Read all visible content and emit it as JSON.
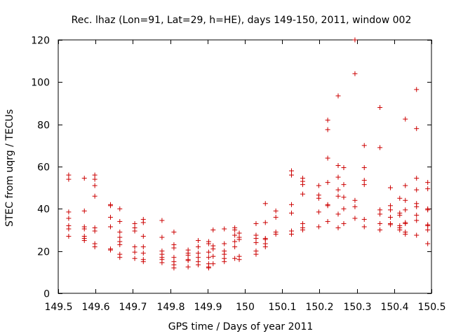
{
  "chart_data": {
    "type": "scatter",
    "title": "Rec. lhaz (Lon=91, Lat=29, h=HE), days 149-150, 2011, window 002",
    "xlabel": "GPS time / Days of year 2011",
    "ylabel": "STEC from uqrg / TECUs",
    "xlim": [
      149.5,
      150.5
    ],
    "ylim": [
      0,
      120
    ],
    "xticks": [
      149.5,
      149.6,
      149.7,
      149.8,
      149.9,
      150,
      150.1,
      150.2,
      150.3,
      150.4,
      150.5
    ],
    "xtick_labels": [
      "149.5",
      "149.6",
      "149.7",
      "149.8",
      "149.9",
      "150",
      "150.1",
      "150.2",
      "150.3",
      "150.4",
      "150.5"
    ],
    "yticks": [
      0,
      20,
      40,
      60,
      80,
      100,
      120
    ],
    "ytick_labels": [
      "0",
      "20",
      "40",
      "60",
      "80",
      "100",
      "120"
    ],
    "grid": false,
    "marker": "+",
    "color": "#cc0000",
    "points": [
      [
        149.528,
        56
      ],
      [
        149.528,
        54
      ],
      [
        149.528,
        38.5
      ],
      [
        149.528,
        35.5
      ],
      [
        149.528,
        32
      ],
      [
        149.528,
        30.5
      ],
      [
        149.528,
        27
      ],
      [
        149.57,
        54.5
      ],
      [
        149.57,
        39
      ],
      [
        149.57,
        31.5
      ],
      [
        149.57,
        30.5
      ],
      [
        149.57,
        27
      ],
      [
        149.57,
        26
      ],
      [
        149.57,
        25
      ],
      [
        149.598,
        56
      ],
      [
        149.598,
        54
      ],
      [
        149.598,
        51
      ],
      [
        149.598,
        46
      ],
      [
        149.598,
        31
      ],
      [
        149.598,
        29.5
      ],
      [
        149.598,
        23.5
      ],
      [
        149.598,
        22
      ],
      [
        149.64,
        42
      ],
      [
        149.64,
        41.5
      ],
      [
        149.64,
        36
      ],
      [
        149.64,
        31.5
      ],
      [
        149.64,
        21
      ],
      [
        149.64,
        20.5
      ],
      [
        149.665,
        40
      ],
      [
        149.665,
        34
      ],
      [
        149.665,
        29
      ],
      [
        149.665,
        26.5
      ],
      [
        149.665,
        24.5
      ],
      [
        149.665,
        23
      ],
      [
        149.665,
        18.5
      ],
      [
        149.665,
        17
      ],
      [
        149.705,
        33
      ],
      [
        149.705,
        31
      ],
      [
        149.705,
        29.5
      ],
      [
        149.705,
        22
      ],
      [
        149.705,
        19.5
      ],
      [
        149.705,
        16.5
      ],
      [
        149.728,
        35
      ],
      [
        149.728,
        33.5
      ],
      [
        149.728,
        27
      ],
      [
        149.728,
        22
      ],
      [
        149.728,
        19
      ],
      [
        149.728,
        16
      ],
      [
        149.728,
        15
      ],
      [
        149.778,
        34.5
      ],
      [
        149.778,
        26.5
      ],
      [
        149.778,
        20
      ],
      [
        149.778,
        18.5
      ],
      [
        149.778,
        17
      ],
      [
        149.778,
        16
      ],
      [
        149.778,
        14.5
      ],
      [
        149.81,
        29
      ],
      [
        149.81,
        23
      ],
      [
        149.81,
        21.5
      ],
      [
        149.81,
        17
      ],
      [
        149.81,
        15
      ],
      [
        149.81,
        13.5
      ],
      [
        149.81,
        12
      ],
      [
        149.848,
        20.5
      ],
      [
        149.848,
        19
      ],
      [
        149.848,
        18
      ],
      [
        149.848,
        16
      ],
      [
        149.848,
        15.5
      ],
      [
        149.848,
        12.5
      ],
      [
        149.875,
        25
      ],
      [
        149.875,
        22
      ],
      [
        149.875,
        19
      ],
      [
        149.875,
        17
      ],
      [
        149.875,
        15
      ],
      [
        149.875,
        13.5
      ],
      [
        149.903,
        24.5
      ],
      [
        149.903,
        23.5
      ],
      [
        149.903,
        19.5
      ],
      [
        149.903,
        17
      ],
      [
        149.903,
        14
      ],
      [
        149.903,
        12.5
      ],
      [
        149.903,
        12
      ],
      [
        149.915,
        30
      ],
      [
        149.915,
        22.5
      ],
      [
        149.915,
        21
      ],
      [
        149.915,
        17.5
      ],
      [
        149.915,
        14
      ],
      [
        149.945,
        30.5
      ],
      [
        149.945,
        23.5
      ],
      [
        149.945,
        20
      ],
      [
        149.945,
        18.5
      ],
      [
        149.945,
        16.5
      ],
      [
        149.945,
        15
      ],
      [
        149.973,
        31
      ],
      [
        149.973,
        30
      ],
      [
        149.973,
        27.5
      ],
      [
        149.973,
        24.5
      ],
      [
        149.973,
        22
      ],
      [
        149.973,
        16.5
      ],
      [
        149.985,
        28.5
      ],
      [
        149.985,
        26.5
      ],
      [
        149.985,
        25.5
      ],
      [
        149.985,
        17.5
      ],
      [
        149.985,
        16
      ],
      [
        150.03,
        33
      ],
      [
        150.03,
        27.5
      ],
      [
        150.03,
        26
      ],
      [
        150.03,
        24
      ],
      [
        150.03,
        20
      ],
      [
        150.03,
        18.5
      ],
      [
        150.055,
        42.5
      ],
      [
        150.055,
        33.5
      ],
      [
        150.055,
        26
      ],
      [
        150.055,
        25.5
      ],
      [
        150.055,
        23.5
      ],
      [
        150.055,
        22
      ],
      [
        150.083,
        39
      ],
      [
        150.083,
        36
      ],
      [
        150.083,
        29
      ],
      [
        150.083,
        28
      ],
      [
        150.125,
        58
      ],
      [
        150.125,
        56
      ],
      [
        150.125,
        42
      ],
      [
        150.125,
        38
      ],
      [
        150.125,
        29.5
      ],
      [
        150.125,
        28
      ],
      [
        150.155,
        54.5
      ],
      [
        150.155,
        53
      ],
      [
        150.155,
        51.5
      ],
      [
        150.155,
        47
      ],
      [
        150.155,
        33
      ],
      [
        150.155,
        31
      ],
      [
        150.155,
        30
      ],
      [
        150.198,
        51
      ],
      [
        150.198,
        46.5
      ],
      [
        150.198,
        45
      ],
      [
        150.198,
        38.5
      ],
      [
        150.198,
        31.5
      ],
      [
        150.222,
        82
      ],
      [
        150.222,
        77.5
      ],
      [
        150.222,
        64
      ],
      [
        150.222,
        52.5
      ],
      [
        150.222,
        42
      ],
      [
        150.222,
        41.5
      ],
      [
        150.222,
        34
      ],
      [
        150.25,
        93.5
      ],
      [
        150.25,
        60.5
      ],
      [
        150.25,
        55
      ],
      [
        150.25,
        49
      ],
      [
        150.25,
        46
      ],
      [
        150.25,
        37.5
      ],
      [
        150.25,
        31
      ],
      [
        150.265,
        59.5
      ],
      [
        150.265,
        51.5
      ],
      [
        150.265,
        45.5
      ],
      [
        150.265,
        40
      ],
      [
        150.265,
        33
      ],
      [
        150.295,
        120
      ],
      [
        150.295,
        104
      ],
      [
        150.295,
        44
      ],
      [
        150.295,
        41
      ],
      [
        150.295,
        35.5
      ],
      [
        150.32,
        70
      ],
      [
        150.32,
        59.5
      ],
      [
        150.32,
        53.5
      ],
      [
        150.32,
        51.5
      ],
      [
        150.32,
        35
      ],
      [
        150.32,
        31.5
      ],
      [
        150.362,
        88
      ],
      [
        150.362,
        69
      ],
      [
        150.362,
        39.5
      ],
      [
        150.362,
        37.5
      ],
      [
        150.362,
        33
      ],
      [
        150.362,
        30
      ],
      [
        150.39,
        50
      ],
      [
        150.39,
        41.5
      ],
      [
        150.39,
        39.5
      ],
      [
        150.39,
        36
      ],
      [
        150.39,
        33
      ],
      [
        150.39,
        32.5
      ],
      [
        150.415,
        45
      ],
      [
        150.415,
        38
      ],
      [
        150.415,
        37
      ],
      [
        150.415,
        32
      ],
      [
        150.415,
        31
      ],
      [
        150.415,
        30
      ],
      [
        150.43,
        82.5
      ],
      [
        150.43,
        51
      ],
      [
        150.43,
        44
      ],
      [
        150.43,
        39.5
      ],
      [
        150.43,
        33.5
      ],
      [
        150.43,
        33
      ],
      [
        150.43,
        29
      ],
      [
        150.43,
        28
      ],
      [
        150.46,
        96.5
      ],
      [
        150.46,
        78
      ],
      [
        150.46,
        54.5
      ],
      [
        150.46,
        49
      ],
      [
        150.46,
        42.5
      ],
      [
        150.46,
        41
      ],
      [
        150.46,
        37
      ],
      [
        150.46,
        34.5
      ],
      [
        150.46,
        27.5
      ],
      [
        150.49,
        52.5
      ],
      [
        150.49,
        49.5
      ],
      [
        150.49,
        40
      ],
      [
        150.49,
        39.5
      ],
      [
        150.49,
        32.5
      ],
      [
        150.49,
        32
      ],
      [
        150.49,
        30
      ],
      [
        150.49,
        23.5
      ]
    ]
  }
}
